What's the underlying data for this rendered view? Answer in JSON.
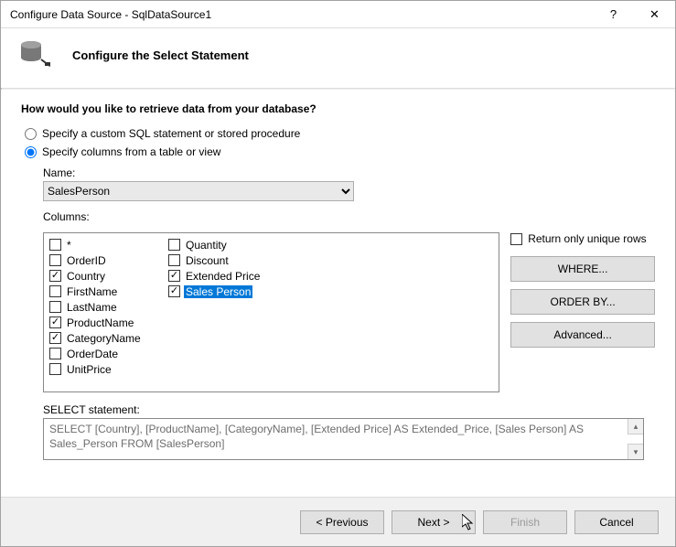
{
  "titlebar": {
    "title": "Configure Data Source - SqlDataSource1",
    "help": "?",
    "close": "✕"
  },
  "header": {
    "heading": "Configure the Select Statement"
  },
  "question": "How would you like to retrieve data from your database?",
  "radios": {
    "custom": {
      "label": "Specify a custom SQL statement or stored procedure",
      "checked": false
    },
    "columns": {
      "label": "Specify columns from a table or view",
      "checked": true
    }
  },
  "name_label": "Name:",
  "name_combo": {
    "selected": "SalesPerson",
    "options": [
      "SalesPerson"
    ]
  },
  "columns_label": "Columns:",
  "columns": [
    {
      "label": "*",
      "checked": false,
      "selected": false
    },
    {
      "label": "OrderID",
      "checked": false,
      "selected": false
    },
    {
      "label": "Country",
      "checked": true,
      "selected": false
    },
    {
      "label": "FirstName",
      "checked": false,
      "selected": false
    },
    {
      "label": "LastName",
      "checked": false,
      "selected": false
    },
    {
      "label": "ProductName",
      "checked": true,
      "selected": false
    },
    {
      "label": "CategoryName",
      "checked": true,
      "selected": false
    },
    {
      "label": "OrderDate",
      "checked": false,
      "selected": false
    },
    {
      "label": "UnitPrice",
      "checked": false,
      "selected": false
    },
    {
      "label": "Quantity",
      "checked": false,
      "selected": false
    },
    {
      "label": "Discount",
      "checked": false,
      "selected": false
    },
    {
      "label": "Extended Price",
      "checked": true,
      "selected": false
    },
    {
      "label": "Sales Person",
      "checked": true,
      "selected": true
    }
  ],
  "unique_rows": {
    "label": "Return only unique rows",
    "checked": false
  },
  "side_buttons": {
    "where": "WHERE...",
    "orderby": "ORDER BY...",
    "advanced": "Advanced..."
  },
  "stmt_label": "SELECT statement:",
  "stmt_text": "SELECT [Country], [ProductName], [CategoryName], [Extended Price] AS Extended_Price, [Sales Person] AS Sales_Person FROM [SalesPerson]",
  "footer": {
    "previous": "< Previous",
    "next": "Next >",
    "finish": "Finish",
    "cancel": "Cancel"
  },
  "colors": {
    "selection_bg": "#0078d7",
    "border": "#888888",
    "button_bg": "#e1e1e1"
  }
}
